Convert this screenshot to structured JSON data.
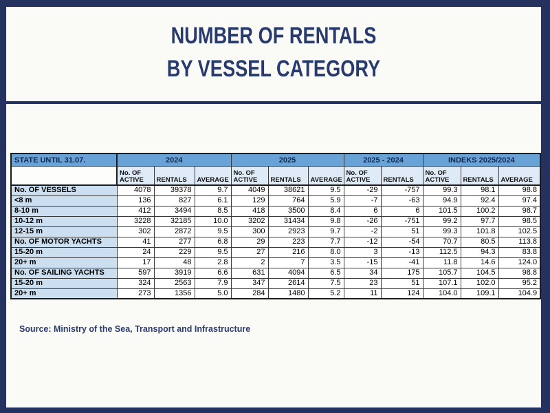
{
  "header": {
    "title_line1": "NUMBER OF RENTALS",
    "title_line2": "BY VESSEL CATEGORY"
  },
  "footer": {
    "source": "Source: Ministry of the Sea, Transport and Infrastructure"
  },
  "colors": {
    "frame_navy": "#253260",
    "title_navy": "#293B6D",
    "group_header_blue": "#68A2D7",
    "subheader_blue": "#DEEAF6",
    "row_label_blue": "#CBDFF1"
  },
  "chart_data": {
    "type": "table",
    "title": "NUMBER OF RENTALS BY VESSEL CATEGORY",
    "corner_label": "STATE UNTIL 31.07.",
    "column_groups": [
      {
        "label": "2024",
        "columns": [
          "No. OF ACTIVE",
          "RENTALS",
          "AVERAGE"
        ]
      },
      {
        "label": "2025",
        "columns": [
          "No. OF ACTIVE",
          "RENTALS",
          "AVERAGE"
        ]
      },
      {
        "label": "2025 - 2024",
        "columns": [
          "No. OF ACTIVE",
          "RENTALS"
        ]
      },
      {
        "label": "INDEKS 2025/2024",
        "columns": [
          "No. OF ACTIVE",
          "RENTALS",
          "AVERAGE"
        ]
      }
    ],
    "rows": [
      {
        "label": "No. OF VESSELS",
        "values": [
          "4078",
          "39378",
          "9.7",
          "4049",
          "38621",
          "9.5",
          "-29",
          "-757",
          "99.3",
          "98.1",
          "98.8"
        ]
      },
      {
        "label": "<8 m",
        "values": [
          "136",
          "827",
          "6.1",
          "129",
          "764",
          "5.9",
          "-7",
          "-63",
          "94.9",
          "92.4",
          "97.4"
        ]
      },
      {
        "label": "8-10 m",
        "values": [
          "412",
          "3494",
          "8.5",
          "418",
          "3500",
          "8.4",
          "6",
          "6",
          "101.5",
          "100.2",
          "98.7"
        ]
      },
      {
        "label": "10-12 m",
        "values": [
          "3228",
          "32185",
          "10.0",
          "3202",
          "31434",
          "9.8",
          "-26",
          "-751",
          "99.2",
          "97.7",
          "98.5"
        ]
      },
      {
        "label": "12-15 m",
        "values": [
          "302",
          "2872",
          "9.5",
          "300",
          "2923",
          "9.7",
          "-2",
          "51",
          "99.3",
          "101.8",
          "102.5"
        ]
      },
      {
        "label": "No. OF MOTOR YACHTS",
        "values": [
          "41",
          "277",
          "6.8",
          "29",
          "223",
          "7.7",
          "-12",
          "-54",
          "70.7",
          "80.5",
          "113.8"
        ]
      },
      {
        "label": "15-20 m",
        "values": [
          "24",
          "229",
          "9.5",
          "27",
          "216",
          "8.0",
          "3",
          "-13",
          "112.5",
          "94.3",
          "83.8"
        ]
      },
      {
        "label": "20+ m",
        "values": [
          "17",
          "48",
          "2.8",
          "2",
          "7",
          "3.5",
          "-15",
          "-41",
          "11.8",
          "14.6",
          "124.0"
        ]
      },
      {
        "label": "No. OF SAILING YACHTS",
        "values": [
          "597",
          "3919",
          "6.6",
          "631",
          "4094",
          "6.5",
          "34",
          "175",
          "105.7",
          "104.5",
          "98.8"
        ]
      },
      {
        "label": "15-20 m",
        "values": [
          "324",
          "2563",
          "7.9",
          "347",
          "2614",
          "7.5",
          "23",
          "51",
          "107.1",
          "102.0",
          "95.2"
        ]
      },
      {
        "label": "20+ m",
        "values": [
          "273",
          "1356",
          "5.0",
          "284",
          "1480",
          "5.2",
          "11",
          "124",
          "104.0",
          "109.1",
          "104.9"
        ]
      }
    ]
  }
}
